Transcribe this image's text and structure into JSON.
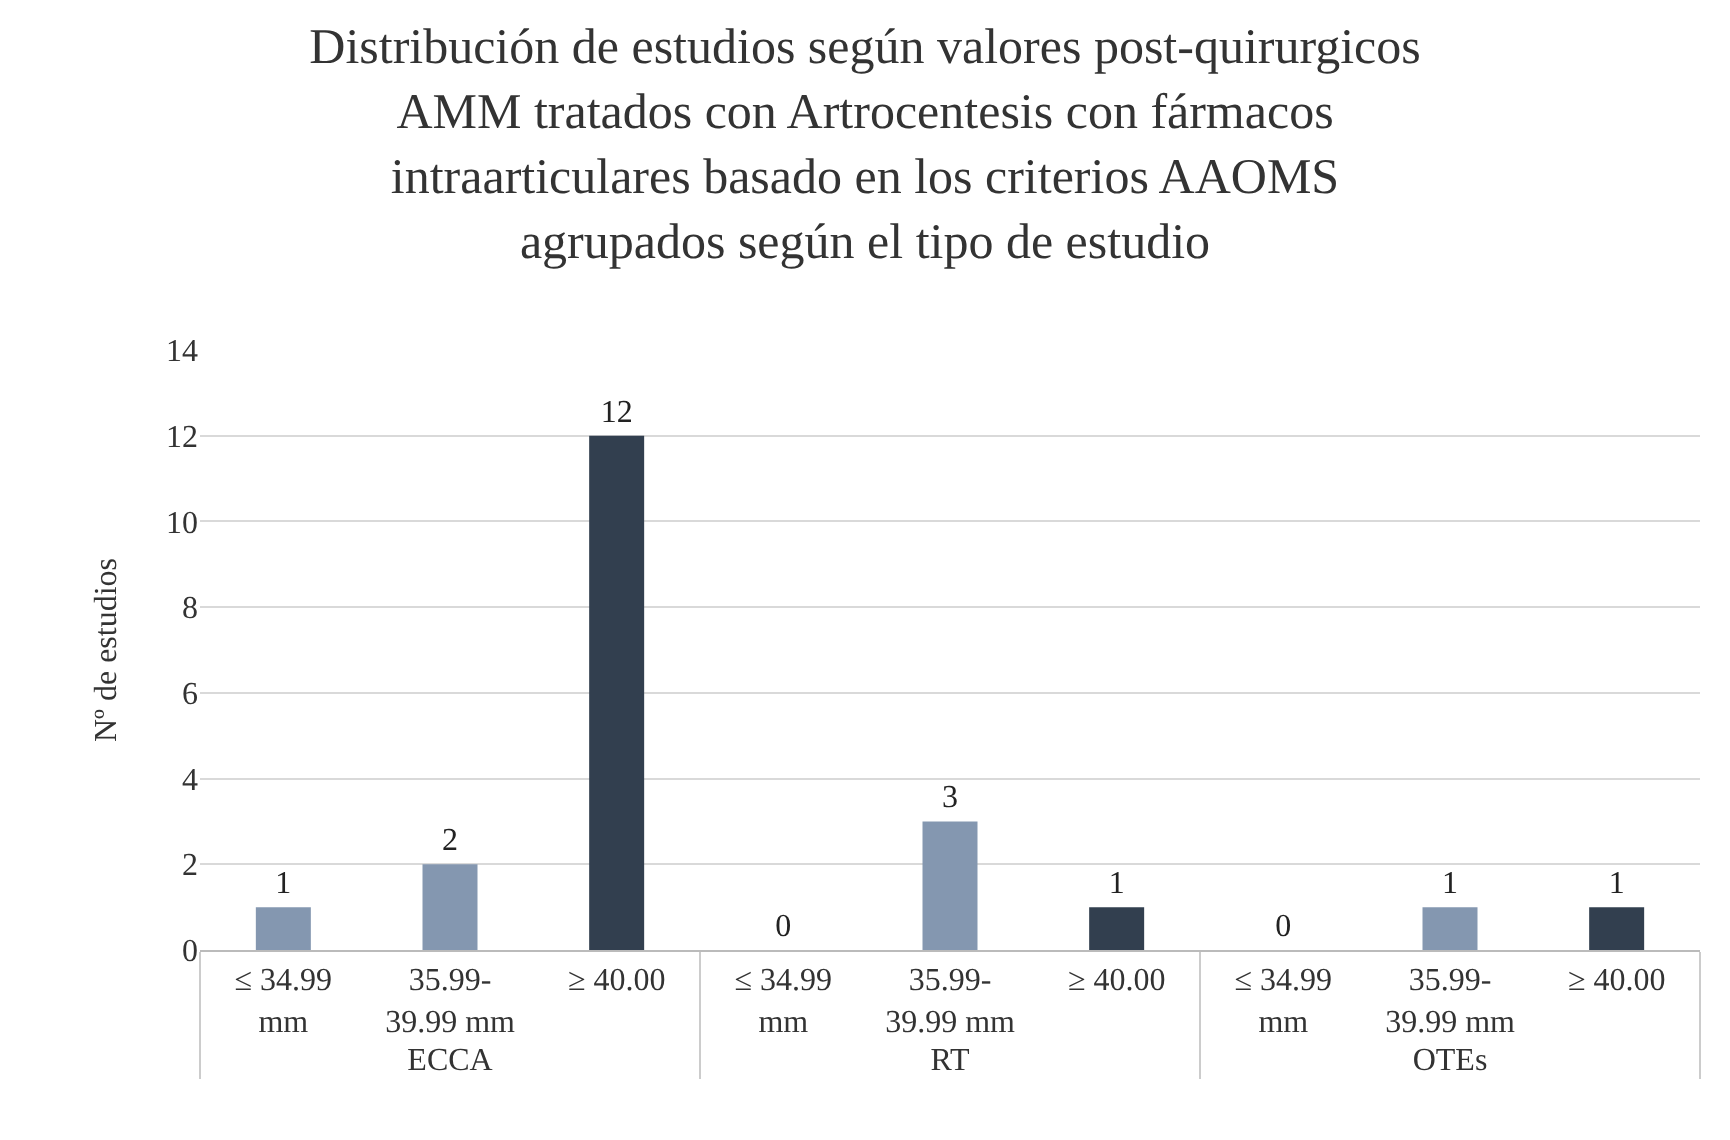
{
  "chart_data": {
    "type": "bar",
    "title": "Distribución de estudios según valores post-quirurgicos\nAMM tratados con Artrocentesis con fármacos\nintraarticulares basado en los criterios AAOMS\nagrupados según el tipo de estudio",
    "ylabel": "Nº de estudios",
    "categories": [
      "≤ 34.99\nmm",
      "35.99-\n39.99 mm",
      "≥ 40.00",
      "≤ 34.99\nmm",
      "35.99-\n39.99 mm",
      "≥ 40.00",
      "≤ 34.99\nmm",
      "35.99-\n39.99 mm",
      "≥ 40.00"
    ],
    "annotations": [
      "ECCA",
      "RT",
      "OTEs"
    ],
    "values": [
      1,
      2,
      12,
      0,
      3,
      1,
      0,
      1,
      1
    ],
    "colors": [
      "#8497b0",
      "#8497b0",
      "#323f4f",
      "#8497b0",
      "#8497b0",
      "#323f4f",
      "#8497b0",
      "#8497b0",
      "#323f4f"
    ],
    "ylim": [
      0,
      14
    ],
    "yticks": [
      0,
      2,
      4,
      6,
      8,
      10,
      12,
      14
    ],
    "grid": "y",
    "data_labels": true
  }
}
